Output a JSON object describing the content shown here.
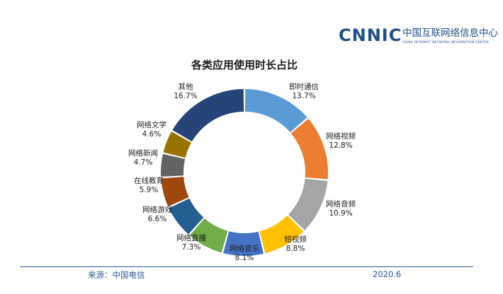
{
  "logo": {
    "name": "CNNIC",
    "cn_name": "中国互联网络信息中心",
    "en_name": "CHINA INTERNET NETWORK INFORMATION CENTER",
    "color": "#1f4e8c"
  },
  "chart_data": {
    "type": "pie",
    "style": "donut",
    "title": "各类应用使用时长占比",
    "unit": "%",
    "slices": [
      {
        "label": "即时通信",
        "value": 13.7,
        "display": "13.7%",
        "color": "#5b9bd5"
      },
      {
        "label": "网络视频",
        "value": 12.8,
        "display": "12.8%",
        "color": "#ed7d31"
      },
      {
        "label": "网络音频",
        "value": 10.9,
        "display": "10.9%",
        "color": "#a5a5a5"
      },
      {
        "label": "短视频",
        "value": 8.8,
        "display": "8.8%",
        "color": "#ffc000"
      },
      {
        "label": "网络音乐",
        "value": 8.1,
        "display": "8.1%",
        "color": "#4472c4"
      },
      {
        "label": "网络直播",
        "value": 7.3,
        "display": "7.3%",
        "color": "#70ad47"
      },
      {
        "label": "网络游戏",
        "value": 6.6,
        "display": "6.6%",
        "color": "#255e91"
      },
      {
        "label": "在线教育",
        "value": 5.9,
        "display": "5.9%",
        "color": "#9e480e"
      },
      {
        "label": "网络新闻",
        "value": 4.7,
        "display": "4.7%",
        "color": "#636363"
      },
      {
        "label": "网络文学",
        "value": 4.6,
        "display": "4.6%",
        "color": "#997300"
      },
      {
        "label": "其他",
        "value": 16.7,
        "display": "16.7%",
        "color": "#264478"
      }
    ]
  },
  "footer": {
    "source": "来源：中国电信",
    "date": "2020.6"
  }
}
